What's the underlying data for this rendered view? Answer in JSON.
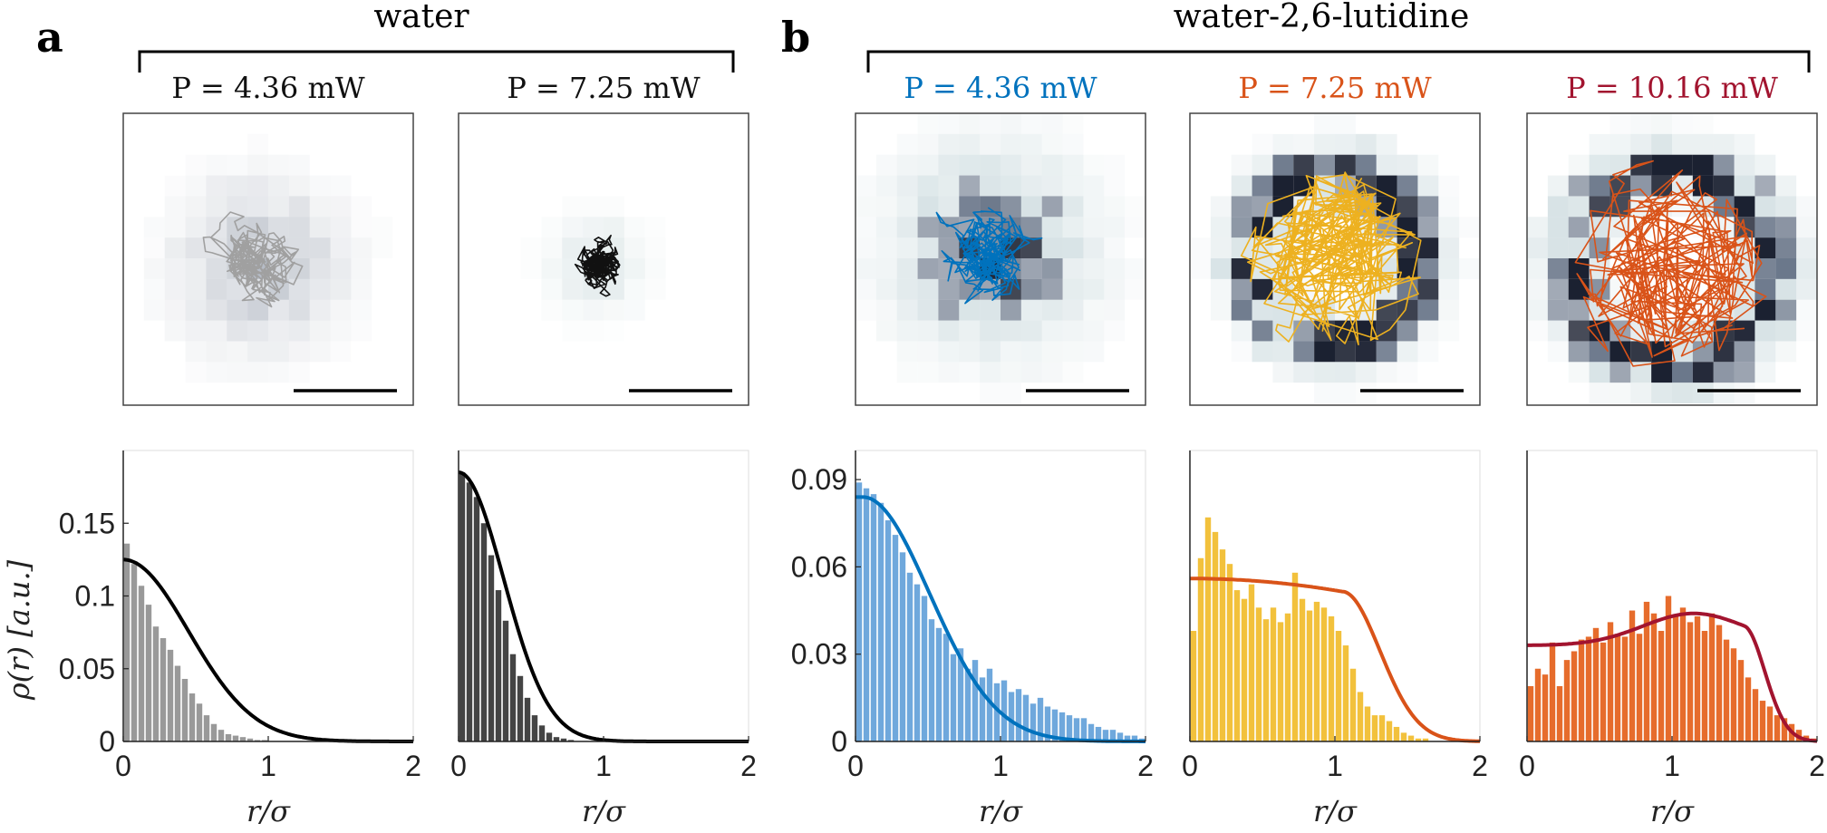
{
  "labels": {
    "panel_a": "a",
    "panel_b": "b",
    "group_a": "water",
    "group_b": "water-2,6-lutidine"
  },
  "colors": {
    "water_low": "#999999",
    "water_high": "#111111",
    "blue": "#0072bd",
    "blue_light": "#6fa8dc",
    "orange": "#d95319",
    "yellow": "#edb120",
    "yellow_fill": "#f2c13c",
    "crimson": "#a2142f",
    "orange_fill": "#e66c2c"
  },
  "chart_data": [
    {
      "type": "bar",
      "panel": "a",
      "title": "P = 4.36 mW",
      "xlabel": "r/σ",
      "ylabel": "ρ(r) [a.u.]",
      "xlim": [
        0,
        2
      ],
      "ylim": [
        0,
        0.2
      ],
      "xticks": [
        0,
        1,
        2
      ],
      "yticks": [
        0,
        0.05,
        0.1,
        0.15
      ],
      "yticklabels": [
        "0",
        "0.05",
        "0.1",
        "0.15"
      ],
      "bin_width": 0.05,
      "values": [
        0.136,
        0.122,
        0.107,
        0.094,
        0.079,
        0.071,
        0.063,
        0.052,
        0.043,
        0.033,
        0.026,
        0.018,
        0.012,
        0.008,
        0.005,
        0.004,
        0.003,
        0.002,
        0.001,
        0.001,
        0.0,
        0.0,
        0.0,
        0.0,
        0.0,
        0.0,
        0.0,
        0.0,
        0.0,
        0.0,
        0.0,
        0.0,
        0.0,
        0.0,
        0.0,
        0.0,
        0.0,
        0.0,
        0.0,
        0.0
      ],
      "fit": {
        "A": 0.125,
        "s": 0.45,
        "R": 0
      },
      "fit_color": "#000000",
      "bar_color": "#999999",
      "trace_color": "#a0a0a0",
      "title_color": "#111111"
    },
    {
      "type": "bar",
      "panel": "a",
      "title": "P = 7.25 mW",
      "xlabel": "r/σ",
      "xlim": [
        0,
        2
      ],
      "ylim": [
        0,
        0.2
      ],
      "xticks": [
        0,
        1,
        2
      ],
      "bin_width": 0.05,
      "values": [
        0.185,
        0.178,
        0.168,
        0.15,
        0.128,
        0.104,
        0.083,
        0.06,
        0.045,
        0.03,
        0.018,
        0.011,
        0.006,
        0.003,
        0.002,
        0.001,
        0.0,
        0.0,
        0.0,
        0.0,
        0.0,
        0.0,
        0.0,
        0.0,
        0.0,
        0.0,
        0.0,
        0.0,
        0.0,
        0.0,
        0.0,
        0.0,
        0.0,
        0.0,
        0.0,
        0.0,
        0.0,
        0.0,
        0.0,
        0.0
      ],
      "fit": {
        "A": 0.185,
        "s": 0.31,
        "R": 0
      },
      "fit_color": "#000000",
      "bar_color": "#444444",
      "trace_color": "#111111",
      "title_color": "#111111"
    },
    {
      "type": "bar",
      "panel": "b",
      "title": "P = 4.36 mW",
      "xlabel": "r/σ",
      "xlim": [
        0,
        2
      ],
      "ylim": [
        0,
        0.1
      ],
      "xticks": [
        0,
        1,
        2
      ],
      "yticks": [
        0,
        0.03,
        0.06,
        0.09
      ],
      "yticklabels": [
        "0",
        "0.03",
        "0.06",
        "0.09"
      ],
      "bin_width": 0.05,
      "values": [
        0.089,
        0.087,
        0.085,
        0.082,
        0.076,
        0.071,
        0.065,
        0.058,
        0.054,
        0.05,
        0.042,
        0.039,
        0.037,
        0.03,
        0.032,
        0.025,
        0.028,
        0.022,
        0.025,
        0.02,
        0.021,
        0.017,
        0.018,
        0.016,
        0.013,
        0.015,
        0.012,
        0.011,
        0.01,
        0.009,
        0.008,
        0.008,
        0.006,
        0.005,
        0.004,
        0.004,
        0.003,
        0.002,
        0.002,
        0.001
      ],
      "fit": {
        "A": 0.084,
        "s": 0.46,
        "R": 0.05
      },
      "fit_color": "#0072bd",
      "bar_color": "#6fa8dc",
      "trace_color": "#0072bd",
      "title_color": "#0072bd"
    },
    {
      "type": "bar",
      "panel": "b",
      "title": "P = 7.25 mW",
      "xlabel": "r/σ",
      "xlim": [
        0,
        2
      ],
      "ylim": [
        0,
        0.1
      ],
      "xticks": [
        0,
        1,
        2
      ],
      "bin_width": 0.05,
      "values": [
        0.038,
        0.063,
        0.077,
        0.072,
        0.066,
        0.061,
        0.052,
        0.049,
        0.054,
        0.046,
        0.042,
        0.046,
        0.041,
        0.044,
        0.058,
        0.049,
        0.045,
        0.048,
        0.046,
        0.043,
        0.038,
        0.033,
        0.025,
        0.017,
        0.012,
        0.009,
        0.009,
        0.007,
        0.005,
        0.003,
        0.002,
        0.001,
        0.001,
        0.0,
        0.0,
        0.0,
        0.0,
        0.0,
        0.0,
        0.0
      ],
      "fit": {
        "A": 0.056,
        "s": 0.26,
        "R": 1.05
      },
      "fit_color": "#d95319",
      "bar_color": "#f2c13c",
      "trace_color": "#edb120",
      "title_color": "#d95319"
    },
    {
      "type": "bar",
      "panel": "b",
      "title": "P = 10.16 mW",
      "xlabel": "r/σ",
      "xlim": [
        0,
        2
      ],
      "ylim": [
        0,
        0.1
      ],
      "xticks": [
        0,
        1,
        2
      ],
      "bin_width": 0.05,
      "values": [
        0.019,
        0.025,
        0.023,
        0.034,
        0.019,
        0.028,
        0.031,
        0.035,
        0.036,
        0.039,
        0.034,
        0.041,
        0.037,
        0.036,
        0.045,
        0.037,
        0.048,
        0.044,
        0.038,
        0.05,
        0.043,
        0.046,
        0.041,
        0.043,
        0.038,
        0.044,
        0.04,
        0.035,
        0.032,
        0.028,
        0.022,
        0.018,
        0.014,
        0.012,
        0.009,
        0.008,
        0.006,
        0.004,
        0.002,
        0.001
      ],
      "fit": {
        "A": 0.033,
        "B": 0.011,
        "s": 0.15,
        "R": 1.5
      },
      "fit_color": "#a2142f",
      "bar_color": "#e66c2c",
      "trace_color": "#d95319",
      "title_color": "#a2142f"
    }
  ]
}
